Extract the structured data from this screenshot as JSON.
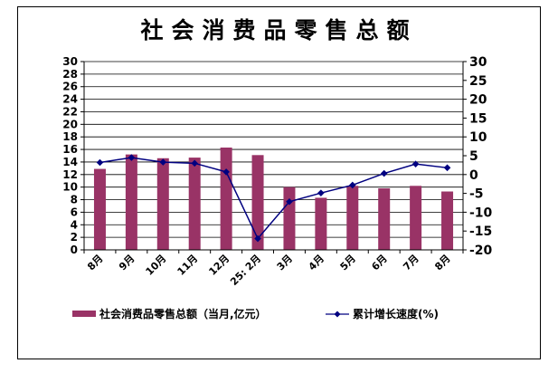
{
  "chart_data": {
    "type": "bar",
    "title": "社会消费品零售总额",
    "categories": [
      "8月",
      "9月",
      "10月",
      "11月",
      "12月",
      "25: 2月",
      "3月",
      "4月",
      "5月",
      "6月",
      "7月",
      "8月"
    ],
    "series": [
      {
        "name": "社会消费品零售总额（当月,亿元）",
        "type": "bar",
        "axis": "left",
        "color": "#993366",
        "values": [
          12.9,
          15.2,
          14.6,
          14.7,
          16.3,
          15.1,
          10.0,
          8.3,
          10.2,
          9.8,
          10.2,
          9.3
        ]
      },
      {
        "name": "累计增长速度(%)",
        "type": "line",
        "axis": "right",
        "color": "#000080",
        "values": [
          3.2,
          4.5,
          3.3,
          3.0,
          0.7,
          -17.0,
          -7.2,
          -4.9,
          -2.8,
          0.3,
          2.8,
          1.8
        ]
      }
    ],
    "y_left": {
      "min": 0,
      "max": 30,
      "step": 2,
      "tick_labels": [
        "0",
        "2",
        "4",
        "6",
        "8",
        "10",
        "12",
        "14",
        "16",
        "18",
        "20",
        "22",
        "24",
        "26",
        "28",
        "30"
      ]
    },
    "y_right": {
      "min": -20,
      "max": 30,
      "step": 5,
      "tick_labels": [
        "-20",
        "-15",
        "-10",
        "-5",
        "0",
        "5",
        "10",
        "15",
        "20",
        "25",
        "30"
      ]
    },
    "grid": true,
    "legend_position": "bottom"
  }
}
